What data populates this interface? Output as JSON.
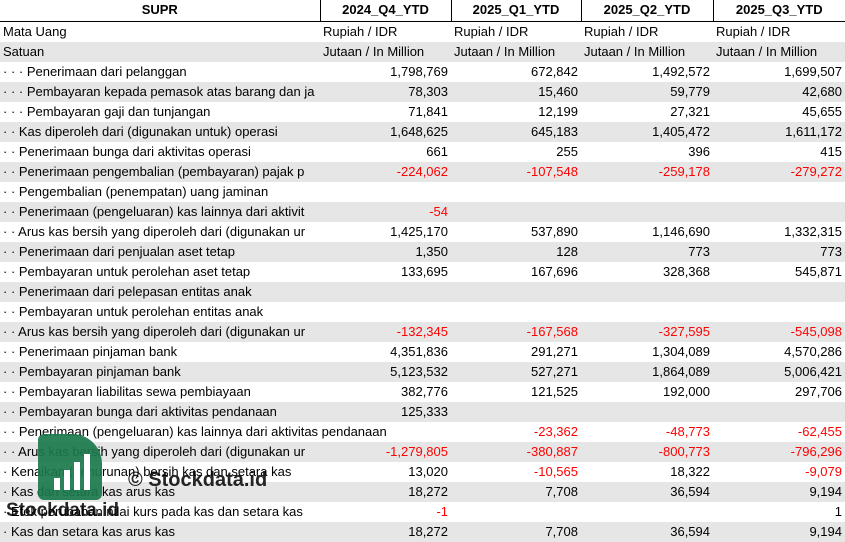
{
  "header": {
    "title": "SUPR",
    "columns": [
      "2024_Q4_YTD",
      "2025_Q1_YTD",
      "2025_Q2_YTD",
      "2025_Q3_YTD"
    ]
  },
  "rows": [
    {
      "label": "Mata Uang",
      "values": [
        "Rupiah / IDR",
        "Rupiah / IDR",
        "Rupiah / IDR",
        "Rupiah / IDR"
      ],
      "text": true
    },
    {
      "label": "Satuan",
      "values": [
        "Jutaan / In Million",
        "Jutaan / In Million",
        "Jutaan / In Million",
        "Jutaan / In Million"
      ],
      "text": true
    },
    {
      "label": "· · · Penerimaan dari pelanggan",
      "values": [
        "1,798,769",
        "672,842",
        "1,492,572",
        "1,699,507"
      ]
    },
    {
      "label": "· · · Pembayaran kepada pemasok atas barang dan ja",
      "values": [
        "78,303",
        "15,460",
        "59,779",
        "42,680"
      ]
    },
    {
      "label": "· · · Pembayaran gaji dan tunjangan",
      "values": [
        "71,841",
        "12,199",
        "27,321",
        "45,655"
      ]
    },
    {
      "label": "· · Kas diperoleh dari (digunakan untuk) operasi",
      "values": [
        "1,648,625",
        "645,183",
        "1,405,472",
        "1,611,172"
      ]
    },
    {
      "label": "· · Penerimaan bunga dari aktivitas operasi",
      "values": [
        "661",
        "255",
        "396",
        "415"
      ]
    },
    {
      "label": "· · Penerimaan pengembalian (pembayaran) pajak p",
      "values": [
        "-224,062",
        "-107,548",
        "-259,178",
        "-279,272"
      ]
    },
    {
      "label": "· · Pengembalian (penempatan) uang jaminan",
      "values": [
        "",
        "",
        "",
        ""
      ]
    },
    {
      "label": "· · Penerimaan (pengeluaran) kas lainnya dari aktivit",
      "values": [
        "-54",
        "",
        "",
        ""
      ]
    },
    {
      "label": "· · Arus kas bersih yang diperoleh dari (digunakan ur",
      "values": [
        "1,425,170",
        "537,890",
        "1,146,690",
        "1,332,315"
      ]
    },
    {
      "label": "· · Penerimaan dari penjualan aset tetap",
      "values": [
        "1,350",
        "128",
        "773",
        "773"
      ]
    },
    {
      "label": "· · Pembayaran untuk perolehan aset tetap",
      "values": [
        "133,695",
        "167,696",
        "328,368",
        "545,871"
      ]
    },
    {
      "label": "· · Penerimaan dari pelepasan entitas anak",
      "values": [
        "",
        "",
        "",
        ""
      ]
    },
    {
      "label": "· · Pembayaran untuk perolehan entitas anak",
      "values": [
        "",
        "",
        "",
        ""
      ]
    },
    {
      "label": "· · Arus kas bersih yang diperoleh dari (digunakan ur",
      "values": [
        "-132,345",
        "-167,568",
        "-327,595",
        "-545,098"
      ]
    },
    {
      "label": "· · Penerimaan pinjaman bank",
      "values": [
        "4,351,836",
        "291,271",
        "1,304,089",
        "4,570,286"
      ]
    },
    {
      "label": "· · Pembayaran pinjaman bank",
      "values": [
        "5,123,532",
        "527,271",
        "1,864,089",
        "5,006,421"
      ]
    },
    {
      "label": "· · Pembayaran liabilitas sewa pembiayaan",
      "values": [
        "382,776",
        "121,525",
        "192,000",
        "297,706"
      ]
    },
    {
      "label": "· · Pembayaran bunga dari aktivitas pendanaan",
      "values": [
        "125,333",
        "",
        "",
        ""
      ]
    },
    {
      "label": "· · Penerimaan (pengeluaran) kas lainnya dari aktivitas pendanaan",
      "values": [
        "",
        "-23,362",
        "-48,773",
        "-62,455"
      ],
      "overflow": true
    },
    {
      "label": "· · Arus kas bersih yang diperoleh dari (digunakan ur",
      "values": [
        "-1,279,805",
        "-380,887",
        "-800,773",
        "-796,296"
      ]
    },
    {
      "label": "· Kenaikan (penurunan) bersih kas dan setara kas",
      "values": [
        "13,020",
        "-10,565",
        "18,322",
        "-9,079"
      ]
    },
    {
      "label": "· Kas dan setara kas arus kas",
      "values": [
        "18,272",
        "7,708",
        "36,594",
        "9,194"
      ]
    },
    {
      "label": "· Efek perubahan nilai kurs pada kas dan setara kas",
      "values": [
        "-1",
        "",
        "",
        "1"
      ]
    },
    {
      "label": "· Kas dan setara kas arus kas",
      "values": [
        "18,272",
        "7,708",
        "36,594",
        "9,194"
      ]
    }
  ],
  "watermark": {
    "brand_bottom": "Stockdata.id",
    "brand_mid": "© Stockdata.id",
    "logo_icon": "bar-chart-icon",
    "logo_color": "#1b7a4c"
  },
  "colors": {
    "negative": "#ff0000",
    "alt_row": "#e6e6e6"
  }
}
